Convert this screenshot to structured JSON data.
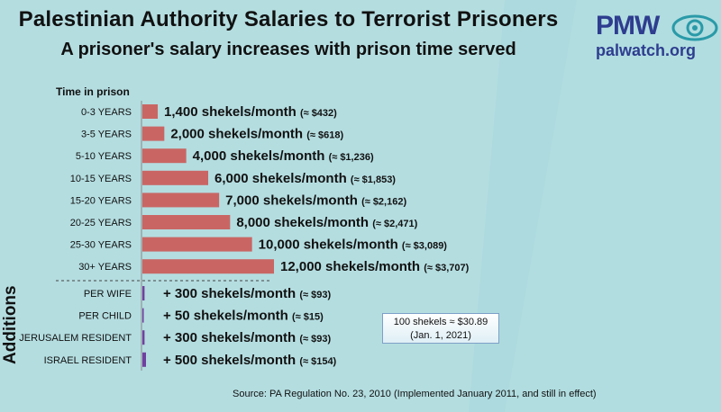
{
  "title": "Palestinian Authority Salaries to Terrorist Prisoners",
  "subtitle": "A prisoner's salary increases with prison time served",
  "logo": {
    "text": "PMW",
    "site": "palwatch.org",
    "icon": "eye-icon"
  },
  "colors": {
    "prison_bar": "#c96664",
    "addition_bar": "#7040a0",
    "background": "#bfe3e6"
  },
  "chart_data": {
    "type": "bar",
    "orientation": "horizontal",
    "axis_title": "Time in prison",
    "categories": [
      "0-3 YEARS",
      "3-5 YEARS",
      "5-10 YEARS",
      "10-15 YEARS",
      "15-20 YEARS",
      "20-25 YEARS",
      "25-30 YEARS",
      "30+ YEARS"
    ],
    "values": [
      1400,
      2000,
      4000,
      6000,
      7000,
      8000,
      10000,
      12000
    ],
    "labels": [
      "1,400 shekels/month",
      "2,000 shekels/month",
      "4,000 shekels/month",
      "6,000 shekels/month",
      "7,000 shekels/month",
      "8,000 shekels/month",
      "10,000 shekels/month",
      "12,000 shekels/month"
    ],
    "usd_labels": [
      "(≈ $432)",
      "(≈ $618)",
      "(≈ $1,236)",
      "(≈ $1,853)",
      "(≈ $2,162)",
      "(≈ $2,471)",
      "(≈ $3,089)",
      "(≈ $3,707)"
    ],
    "additions_title": "Additions",
    "additions": {
      "categories": [
        "PER WIFE",
        "PER CHILD",
        "JERUSALEM RESIDENT",
        "ISRAEL RESIDENT"
      ],
      "values": [
        300,
        50,
        300,
        500
      ],
      "labels": [
        "+ 300 shekels/month",
        "+ 50 shekels/month",
        "+ 300 shekels/month",
        "+ 500 shekels/month"
      ],
      "usd_labels": [
        "(≈ $93)",
        "(≈ $15)",
        "(≈ $93)",
        "(≈ $154)"
      ]
    }
  },
  "note": {
    "line1": "100 shekels ≈ $30.89",
    "line2": "(Jan. 1, 2021)"
  },
  "source": "Source: PA Regulation No. 23, 2010 (Implemented January 2011, and still in effect)"
}
